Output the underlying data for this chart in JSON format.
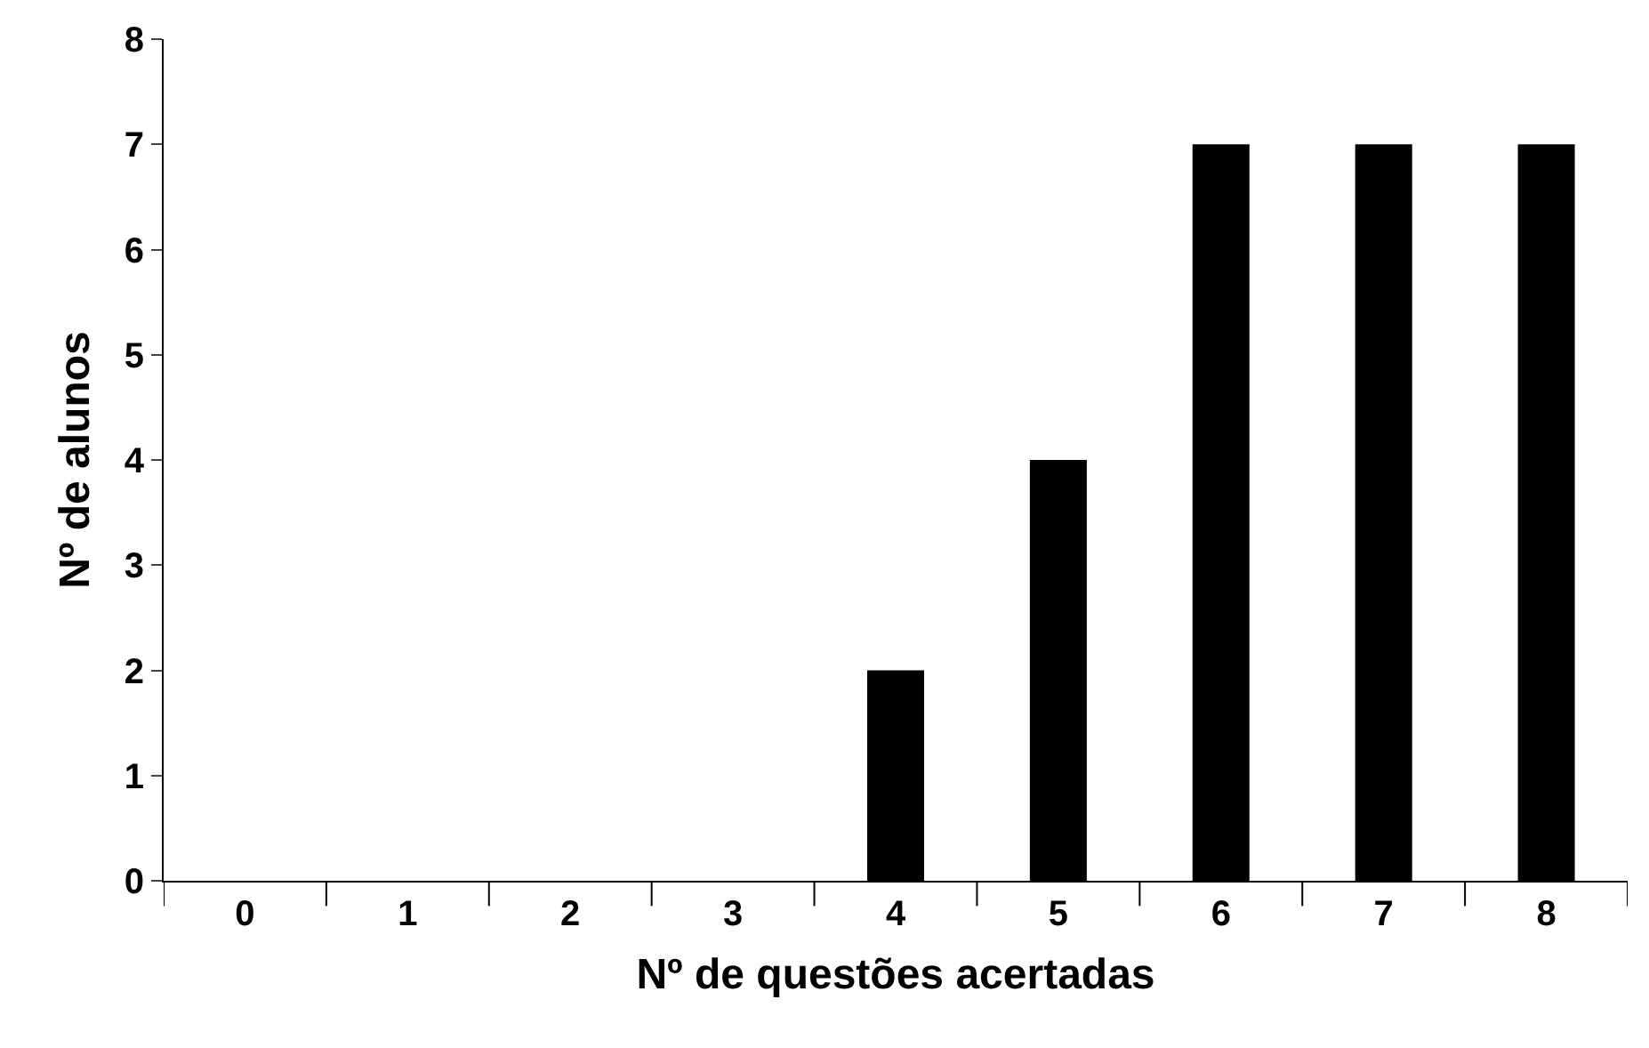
{
  "chart_data": {
    "type": "bar",
    "xlabel": "Nº de questões acertadas",
    "ylabel": "Nº de alunos",
    "categories": [
      "0",
      "1",
      "2",
      "3",
      "4",
      "5",
      "6",
      "7",
      "8"
    ],
    "values": [
      0,
      0,
      0,
      0,
      2,
      4,
      7,
      7,
      7
    ],
    "color": "#000000",
    "ylim": [
      0,
      8
    ],
    "yticks": [
      0,
      1,
      2,
      3,
      4,
      5,
      6,
      7,
      8
    ],
    "legend": false
  }
}
